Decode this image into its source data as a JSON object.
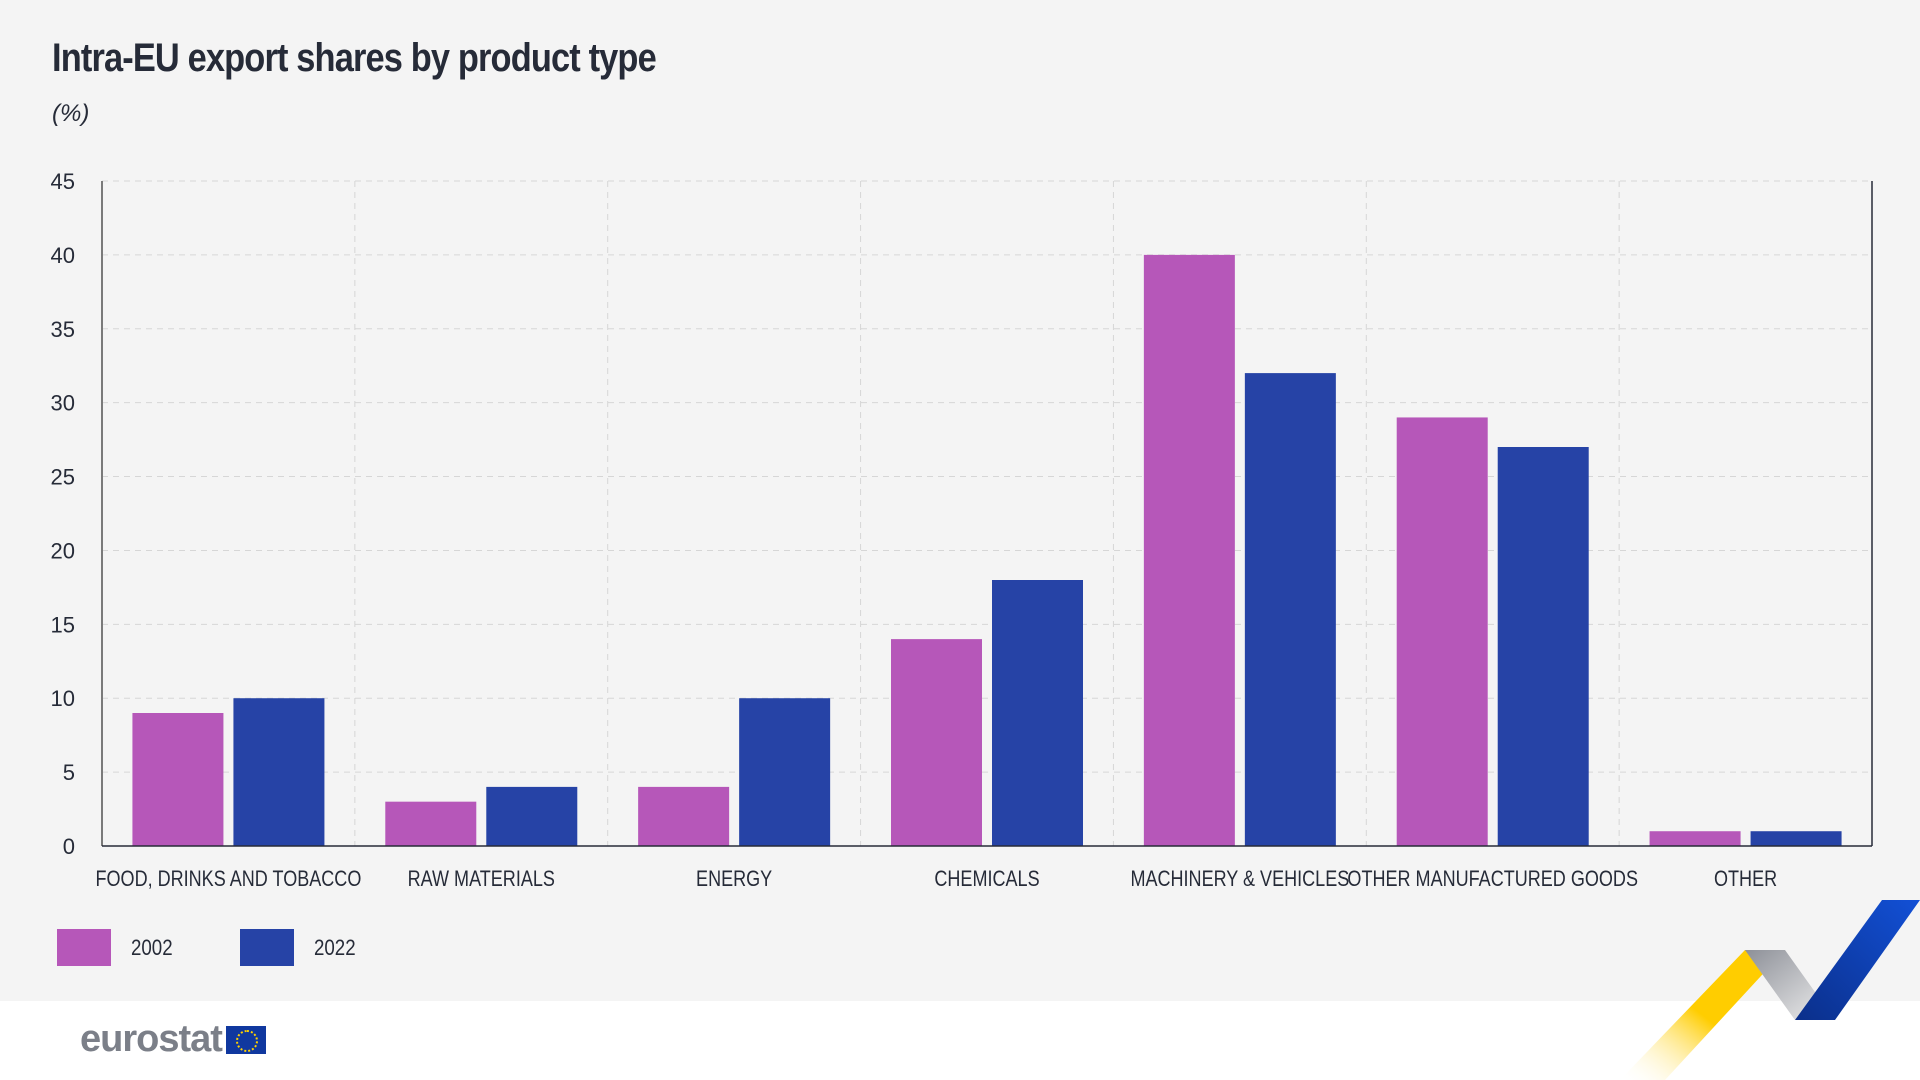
{
  "header": {
    "title": "Intra-EU export shares by product type",
    "subtitle": "(%)"
  },
  "legend": [
    {
      "label": "2002",
      "color": "#b657b9"
    },
    {
      "label": "2022",
      "color": "#2643a6"
    }
  ],
  "footer": {
    "logo_text": "eurostat",
    "flag_icon": "eu-flag-icon"
  },
  "chart_data": {
    "type": "bar",
    "title": "Intra-EU export shares by product type",
    "subtitle": "(%)",
    "xlabel": "",
    "ylabel": "%",
    "ylim": [
      0,
      45
    ],
    "yticks": [
      0,
      5,
      10,
      15,
      20,
      25,
      30,
      35,
      40,
      45
    ],
    "grid": true,
    "legend_position": "bottom-left",
    "categories": [
      "FOOD, DRINKS AND TOBACCO",
      "RAW MATERIALS",
      "ENERGY",
      "CHEMICALS",
      "MACHINERY & VEHICLES",
      "OTHER MANUFACTURED GOODS",
      "OTHER"
    ],
    "series": [
      {
        "name": "2002",
        "color": "#b657b9",
        "values": [
          9,
          3,
          4,
          14,
          40,
          29,
          1
        ]
      },
      {
        "name": "2022",
        "color": "#2643a6",
        "values": [
          10,
          4,
          10,
          18,
          32,
          27,
          1
        ]
      }
    ]
  }
}
